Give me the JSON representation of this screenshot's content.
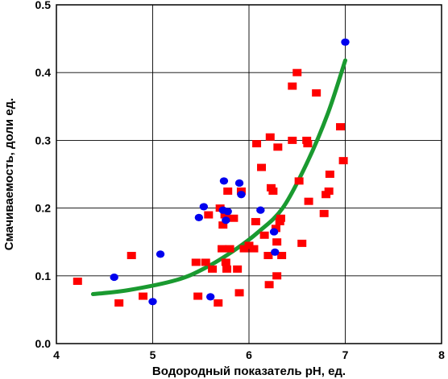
{
  "chart_data": {
    "type": "scatter",
    "title": "",
    "xlabel": "Водородный показатель рН, ед.",
    "ylabel": "Смачиваемость, доли ед.",
    "xlim": [
      4,
      8
    ],
    "ylim": [
      0,
      0.5
    ],
    "xticks": [
      "4",
      "5",
      "6",
      "7",
      "8"
    ],
    "yticks": [
      "0.0",
      "0.1",
      "0.2",
      "0.3",
      "0.4",
      "0.5"
    ],
    "grid": true,
    "legend": "none",
    "series": [
      {
        "marker": "square",
        "color": "#ff0000",
        "points": [
          [
            4.22,
            0.092
          ],
          [
            4.65,
            0.06
          ],
          [
            4.78,
            0.13
          ],
          [
            4.9,
            0.07
          ],
          [
            5.45,
            0.12
          ],
          [
            5.47,
            0.07
          ],
          [
            5.55,
            0.12
          ],
          [
            5.58,
            0.19
          ],
          [
            5.62,
            0.11
          ],
          [
            5.68,
            0.06
          ],
          [
            5.7,
            0.2
          ],
          [
            5.72,
            0.14
          ],
          [
            5.73,
            0.175
          ],
          [
            5.75,
            0.19
          ],
          [
            5.76,
            0.12
          ],
          [
            5.77,
            0.11
          ],
          [
            5.78,
            0.225
          ],
          [
            5.8,
            0.14
          ],
          [
            5.84,
            0.185
          ],
          [
            5.88,
            0.11
          ],
          [
            5.9,
            0.075
          ],
          [
            5.92,
            0.225
          ],
          [
            5.95,
            0.14
          ],
          [
            6.0,
            0.145
          ],
          [
            6.05,
            0.14
          ],
          [
            6.07,
            0.18
          ],
          [
            6.08,
            0.295
          ],
          [
            6.13,
            0.26
          ],
          [
            6.16,
            0.16
          ],
          [
            6.2,
            0.13
          ],
          [
            6.21,
            0.087
          ],
          [
            6.22,
            0.305
          ],
          [
            6.23,
            0.23
          ],
          [
            6.25,
            0.225
          ],
          [
            6.28,
            0.17
          ],
          [
            6.29,
            0.1
          ],
          [
            6.29,
            0.15
          ],
          [
            6.3,
            0.29
          ],
          [
            6.32,
            0.18
          ],
          [
            6.33,
            0.185
          ],
          [
            6.34,
            0.13
          ],
          [
            6.45,
            0.38
          ],
          [
            6.45,
            0.3
          ],
          [
            6.5,
            0.4
          ],
          [
            6.52,
            0.24
          ],
          [
            6.55,
            0.148
          ],
          [
            6.6,
            0.3
          ],
          [
            6.61,
            0.295
          ],
          [
            6.62,
            0.21
          ],
          [
            6.7,
            0.37
          ],
          [
            6.78,
            0.192
          ],
          [
            6.8,
            0.22
          ],
          [
            6.83,
            0.225
          ],
          [
            6.84,
            0.25
          ],
          [
            6.95,
            0.32
          ],
          [
            6.98,
            0.27
          ]
        ]
      },
      {
        "marker": "circle",
        "color": "#0000ee",
        "points": [
          [
            4.6,
            0.098
          ],
          [
            5.0,
            0.062
          ],
          [
            5.08,
            0.132
          ],
          [
            5.48,
            0.186
          ],
          [
            5.53,
            0.202
          ],
          [
            5.6,
            0.069
          ],
          [
            5.73,
            0.197
          ],
          [
            5.74,
            0.24
          ],
          [
            5.76,
            0.182
          ],
          [
            5.78,
            0.195
          ],
          [
            5.9,
            0.237
          ],
          [
            5.92,
            0.22
          ],
          [
            6.12,
            0.197
          ],
          [
            6.26,
            0.165
          ],
          [
            6.27,
            0.135
          ],
          [
            7.0,
            0.445
          ]
        ]
      }
    ],
    "fit_line": {
      "color": "#1a9a30",
      "points": [
        [
          4.38,
          0.073
        ],
        [
          4.75,
          0.079
        ],
        [
          5.25,
          0.094
        ],
        [
          5.55,
          0.112
        ],
        [
          5.85,
          0.138
        ],
        [
          6.1,
          0.165
        ],
        [
          6.35,
          0.2
        ],
        [
          6.6,
          0.266
        ],
        [
          6.82,
          0.34
        ],
        [
          7.0,
          0.418
        ]
      ]
    }
  }
}
